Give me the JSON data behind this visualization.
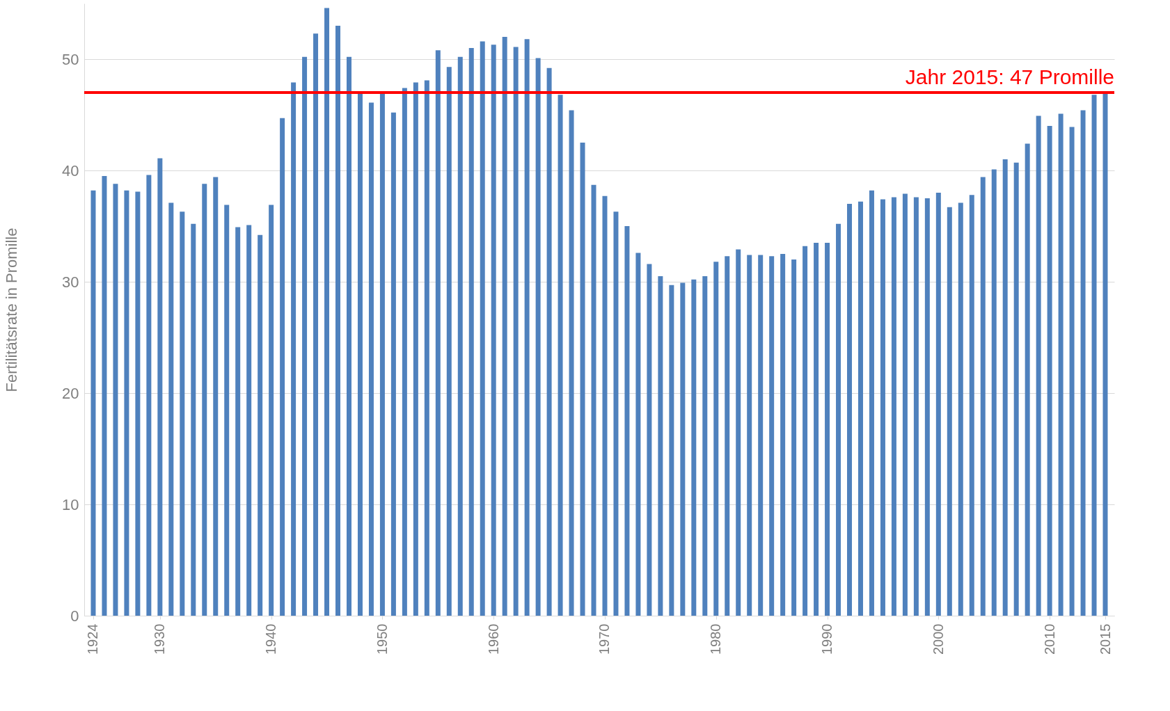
{
  "chart_data": {
    "type": "bar",
    "ylabel": "Fertilitätsrate in Promille",
    "x": [
      1924,
      1925,
      1926,
      1927,
      1928,
      1929,
      1930,
      1931,
      1932,
      1933,
      1934,
      1935,
      1936,
      1937,
      1938,
      1939,
      1940,
      1941,
      1942,
      1943,
      1944,
      1945,
      1946,
      1947,
      1948,
      1949,
      1950,
      1951,
      1952,
      1953,
      1954,
      1955,
      1956,
      1957,
      1958,
      1959,
      1960,
      1961,
      1962,
      1963,
      1964,
      1965,
      1966,
      1967,
      1968,
      1969,
      1970,
      1971,
      1972,
      1973,
      1974,
      1975,
      1976,
      1977,
      1978,
      1979,
      1980,
      1981,
      1982,
      1983,
      1984,
      1985,
      1986,
      1987,
      1988,
      1989,
      1990,
      1991,
      1992,
      1993,
      1994,
      1995,
      1996,
      1997,
      1998,
      1999,
      2000,
      2001,
      2002,
      2003,
      2004,
      2005,
      2006,
      2007,
      2008,
      2009,
      2010,
      2011,
      2012,
      2013,
      2014,
      2015
    ],
    "series": [
      {
        "color": "#4f81bd",
        "values": [
          38.2,
          39.5,
          38.8,
          38.2,
          38.1,
          39.6,
          41.1,
          37.1,
          36.3,
          35.2,
          38.8,
          39.4,
          36.9,
          34.9,
          35.1,
          34.2,
          36.9,
          44.7,
          47.9,
          50.2,
          52.3,
          54.6,
          53.0,
          50.2,
          46.9,
          46.1,
          46.9,
          45.2,
          47.4,
          47.9,
          48.1,
          50.8,
          49.3,
          50.2,
          51.0,
          51.6,
          51.3,
          52.0,
          51.1,
          51.8,
          50.1,
          49.2,
          46.8,
          45.4,
          42.5,
          38.7,
          37.7,
          36.3,
          35.0,
          32.6,
          31.6,
          30.5,
          29.7,
          29.9,
          30.2,
          30.5,
          31.8,
          32.3,
          32.9,
          32.4,
          32.4,
          32.3,
          32.5,
          32.0,
          33.2,
          33.5,
          33.5,
          35.2,
          37.0,
          37.2,
          38.2,
          37.4,
          37.6,
          37.9,
          37.6,
          37.5,
          38.0,
          36.7,
          37.1,
          37.8,
          39.4,
          40.1,
          41.0,
          40.7,
          42.4,
          44.9,
          44.0,
          45.1,
          43.9,
          45.4,
          46.8,
          47.0
        ]
      }
    ],
    "xlim": [
      1923.5,
      2015.5
    ],
    "xticks": [
      1924,
      1930,
      1940,
      1950,
      1960,
      1970,
      1980,
      1990,
      2000,
      2010,
      2015
    ],
    "ylim": [
      0,
      55
    ],
    "yticks": [
      0,
      10,
      20,
      30,
      40,
      50
    ],
    "grid": "y",
    "ref_lines": [
      {
        "axis": "y",
        "value": 47,
        "label": "Jahr 2015: 47 Promille",
        "color": "#ff0000"
      }
    ]
  }
}
